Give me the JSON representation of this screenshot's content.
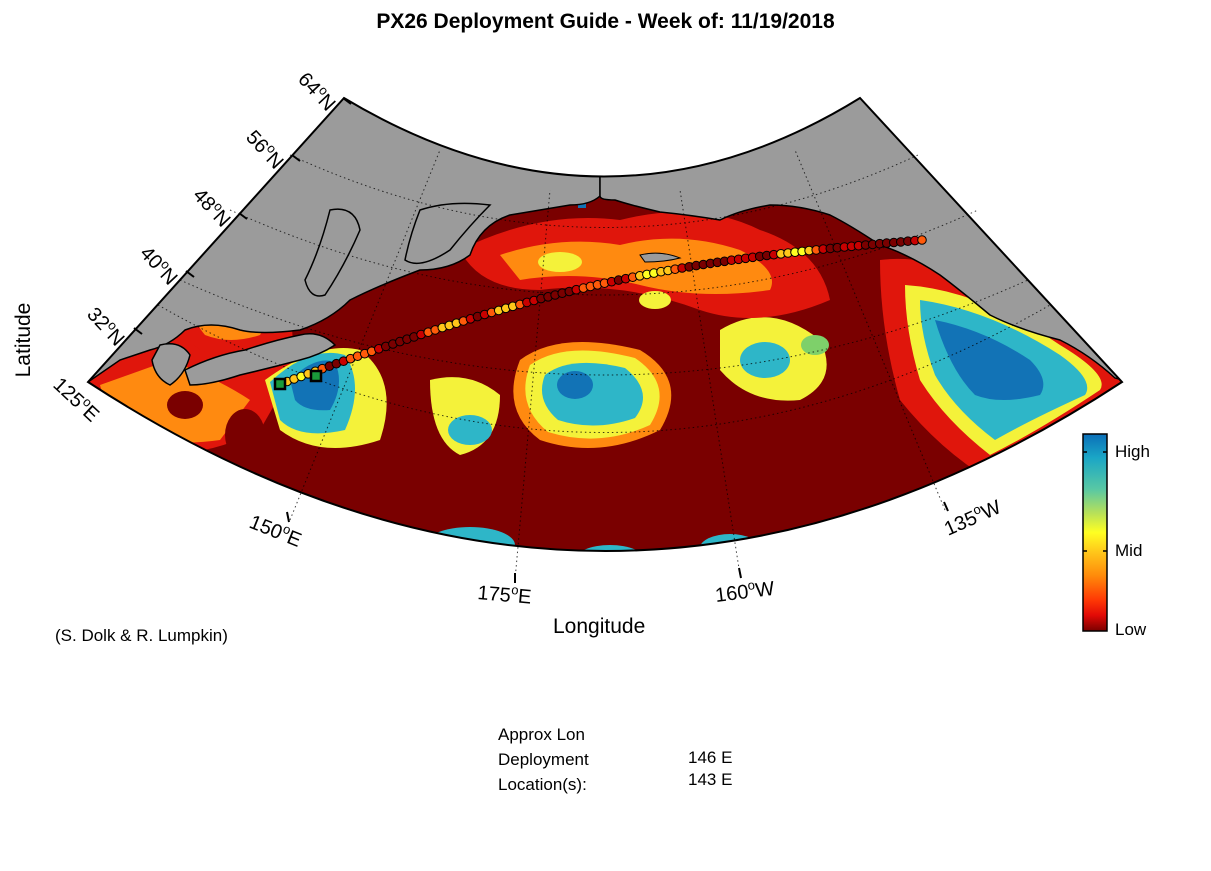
{
  "title": "PX26 Deployment Guide - Week of: 11/19/2018",
  "x_axis_label": "Longitude",
  "y_axis_label": "Latitude",
  "credit": "(S. Dolk & R. Lumpkin)",
  "latitude_ticks": [
    {
      "num": "32",
      "dir": "N"
    },
    {
      "num": "40",
      "dir": "N"
    },
    {
      "num": "48",
      "dir": "N"
    },
    {
      "num": "56",
      "dir": "N"
    },
    {
      "num": "64",
      "dir": "N"
    }
  ],
  "longitude_ticks": [
    {
      "num": "125",
      "dir": "E"
    },
    {
      "num": "150",
      "dir": "E"
    },
    {
      "num": "175",
      "dir": "E"
    },
    {
      "num": "160",
      "dir": "W"
    },
    {
      "num": "135",
      "dir": "W"
    }
  ],
  "colorbar": {
    "labels": {
      "high": "High",
      "mid": "Mid",
      "low": "Low"
    },
    "colors": [
      "#0b6fb8",
      "#1aa6c6",
      "#58c8a4",
      "#b6e05a",
      "#ffff22",
      "#ffc61a",
      "#ff8a0a",
      "#ff3a05",
      "#e20a06",
      "#7a0000"
    ]
  },
  "map_colors": {
    "land": "#9b9b9b",
    "ocean_low": "#7a0000",
    "red": "#e0160c",
    "orange": "#ff8a10",
    "yellow": "#f4f23a",
    "green": "#7ed06a",
    "cyan": "#2eb6c8",
    "blue": "#1273b6"
  },
  "deployment": {
    "header_line1": "Approx Lon",
    "header_line2": "Deployment",
    "header_line3": "Location(s):",
    "locations": [
      "146 E",
      "143 E"
    ]
  }
}
